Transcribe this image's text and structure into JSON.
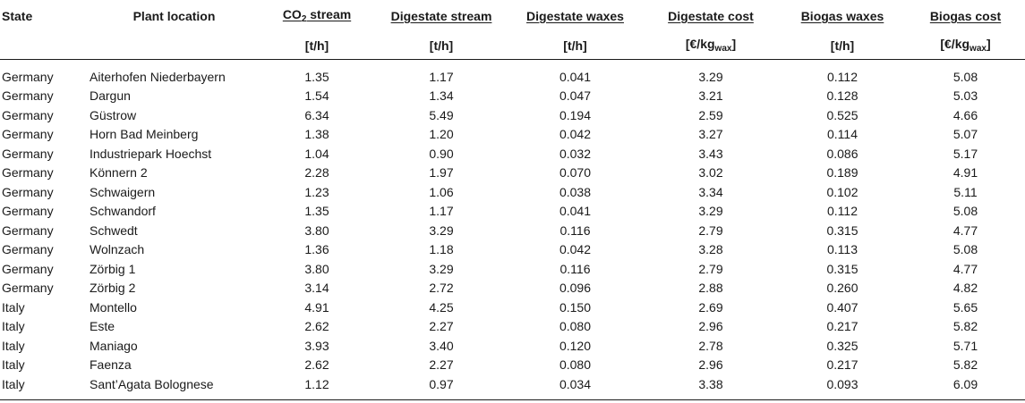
{
  "table": {
    "columns": [
      {
        "label": "State",
        "unit": ""
      },
      {
        "label": "Plant location",
        "unit": ""
      },
      {
        "label_pre": "CO",
        "label_sub": "2",
        "label_post": " stream",
        "unit": "[t/h]"
      },
      {
        "label": "Digestate stream",
        "unit": "[t/h]"
      },
      {
        "label": "Digestate waxes",
        "unit": "[t/h]"
      },
      {
        "label": "Digestate cost",
        "unit_pre": "[€/kg",
        "unit_sub": "wax",
        "unit_post": "]"
      },
      {
        "label": "Biogas waxes",
        "unit": "[t/h]"
      },
      {
        "label": "Biogas cost",
        "unit_pre": "[€/kg",
        "unit_sub": "wax",
        "unit_post": "]"
      }
    ],
    "rows": [
      [
        "Germany",
        "Aiterhofen Niederbayern",
        "1.35",
        "1.17",
        "0.041",
        "3.29",
        "0.112",
        "5.08"
      ],
      [
        "Germany",
        "Dargun",
        "1.54",
        "1.34",
        "0.047",
        "3.21",
        "0.128",
        "5.03"
      ],
      [
        "Germany",
        "Güstrow",
        "6.34",
        "5.49",
        "0.194",
        "2.59",
        "0.525",
        "4.66"
      ],
      [
        "Germany",
        "Horn Bad Meinberg",
        "1.38",
        "1.20",
        "0.042",
        "3.27",
        "0.114",
        "5.07"
      ],
      [
        "Germany",
        "Industriepark Hoechst",
        "1.04",
        "0.90",
        "0.032",
        "3.43",
        "0.086",
        "5.17"
      ],
      [
        "Germany",
        "Könnern 2",
        "2.28",
        "1.97",
        "0.070",
        "3.02",
        "0.189",
        "4.91"
      ],
      [
        "Germany",
        "Schwaigern",
        "1.23",
        "1.06",
        "0.038",
        "3.34",
        "0.102",
        "5.11"
      ],
      [
        "Germany",
        "Schwandorf",
        "1.35",
        "1.17",
        "0.041",
        "3.29",
        "0.112",
        "5.08"
      ],
      [
        "Germany",
        "Schwedt",
        "3.80",
        "3.29",
        "0.116",
        "2.79",
        "0.315",
        "4.77"
      ],
      [
        "Germany",
        "Wolnzach",
        "1.36",
        "1.18",
        "0.042",
        "3.28",
        "0.113",
        "5.08"
      ],
      [
        "Germany",
        "Zörbig 1",
        "3.80",
        "3.29",
        "0.116",
        "2.79",
        "0.315",
        "4.77"
      ],
      [
        "Germany",
        "Zörbig 2",
        "3.14",
        "2.72",
        "0.096",
        "2.88",
        "0.260",
        "4.82"
      ],
      [
        "Italy",
        "Montello",
        "4.91",
        "4.25",
        "0.150",
        "2.69",
        "0.407",
        "5.65"
      ],
      [
        "Italy",
        "Este",
        "2.62",
        "2.27",
        "0.080",
        "2.96",
        "0.217",
        "5.82"
      ],
      [
        "Italy",
        "Maniago",
        "3.93",
        "3.40",
        "0.120",
        "2.78",
        "0.325",
        "5.71"
      ],
      [
        "Italy",
        "Faenza",
        "2.62",
        "2.27",
        "0.080",
        "2.96",
        "0.217",
        "5.82"
      ],
      [
        "Italy",
        "Sant’Agata Bolognese",
        "1.12",
        "0.97",
        "0.034",
        "3.38",
        "0.093",
        "6.09"
      ]
    ]
  }
}
